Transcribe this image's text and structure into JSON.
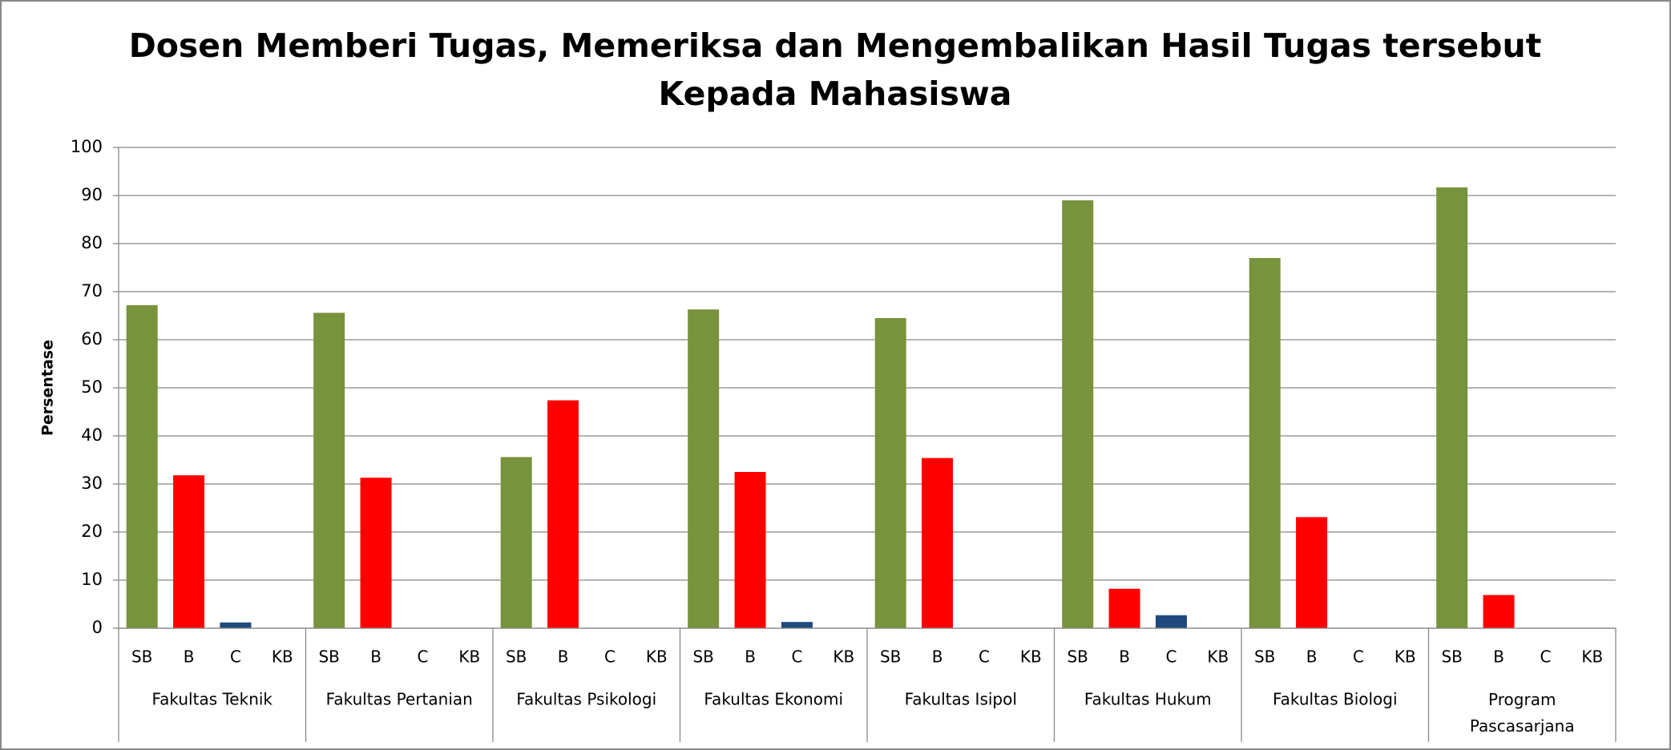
{
  "chart_data": {
    "type": "grouped-bar",
    "title": "Dosen Memberi Tugas, Memeriksa dan Mengembalikan Hasil Tugas tersebut",
    "subtitle": "Kepada Mahasiswa",
    "y_label": "Persentase",
    "categories": [
      "Fakultas Teknik",
      "Fakultas Pertanian",
      "Fakultas Psikologi",
      "Fakultas Ekonomi",
      "Fakultas Isipol",
      "Fakultas Hukum",
      "Fakultas Biologi",
      "Program Pascasarjana"
    ],
    "series": [
      {
        "name": "SB",
        "color": "#77933c",
        "values": [
          67.2,
          65.6,
          35.6,
          66.3,
          64.5,
          89,
          77,
          91.7
        ]
      },
      {
        "name": "B",
        "color": "#ff0000",
        "values": [
          31.8,
          31.3,
          47.4,
          32.5,
          35.4,
          8.2,
          23.1,
          6.9
        ]
      },
      {
        "name": "C",
        "color": "#1f497d",
        "values": [
          1.2,
          0,
          0,
          1.3,
          0,
          2.7,
          0,
          0
        ]
      },
      {
        "name": "KB",
        "values": [
          0,
          0,
          0,
          0,
          0,
          0,
          0,
          0
        ]
      }
    ],
    "ylim": [
      0,
      100
    ],
    "yticks": [
      0,
      10,
      20,
      30,
      40,
      50,
      60,
      70,
      80,
      90,
      100
    ],
    "grid": true
  }
}
